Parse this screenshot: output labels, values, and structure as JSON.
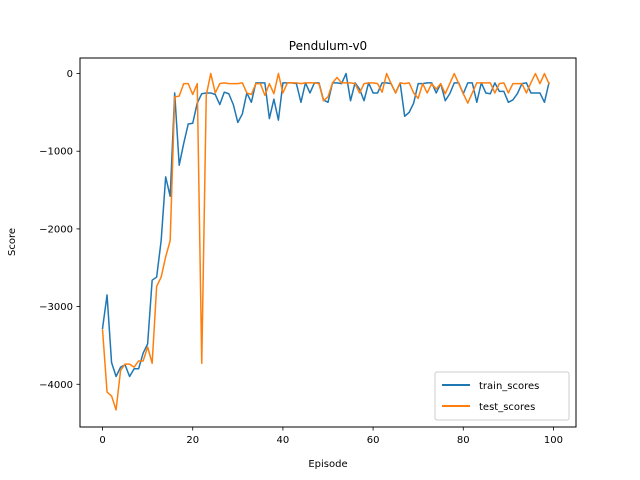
{
  "chart_data": {
    "type": "line",
    "title": "Pendulum-v0",
    "xlabel": "Episode",
    "ylabel": "Score",
    "xlim": [
      -5,
      105
    ],
    "ylim": [
      -4550,
      200
    ],
    "xticks": [
      0,
      20,
      40,
      60,
      80,
      100
    ],
    "yticks": [
      -4000,
      -3000,
      -2000,
      -1000,
      0
    ],
    "xtick_labels": [
      "0",
      "20",
      "40",
      "60",
      "80",
      "100"
    ],
    "ytick_labels": [
      "−4000",
      "−3000",
      "−2000",
      "−1000",
      "0"
    ],
    "legend_position": "lower-right",
    "series": [
      {
        "name": "train_scores",
        "color": "#1f77b4",
        "x": [
          0,
          1,
          2,
          3,
          4,
          5,
          6,
          7,
          8,
          9,
          10,
          11,
          12,
          13,
          14,
          15,
          16,
          17,
          18,
          19,
          20,
          21,
          22,
          23,
          24,
          25,
          26,
          27,
          28,
          29,
          30,
          31,
          32,
          33,
          34,
          35,
          36,
          37,
          38,
          39,
          40,
          41,
          42,
          43,
          44,
          45,
          46,
          47,
          48,
          49,
          50,
          51,
          52,
          53,
          54,
          55,
          56,
          57,
          58,
          59,
          60,
          61,
          62,
          63,
          64,
          65,
          66,
          67,
          68,
          69,
          70,
          71,
          72,
          73,
          74,
          75,
          76,
          77,
          78,
          79,
          80,
          81,
          82,
          83,
          84,
          85,
          86,
          87,
          88,
          89,
          90,
          91,
          92,
          93,
          94,
          95,
          96,
          97,
          98,
          99
        ],
        "values": [
          -3280,
          -2850,
          -3720,
          -3900,
          -3780,
          -3750,
          -3900,
          -3800,
          -3800,
          -3600,
          -3480,
          -2660,
          -2620,
          -2150,
          -1330,
          -1580,
          -250,
          -1180,
          -900,
          -650,
          -640,
          -380,
          -260,
          -250,
          -250,
          -270,
          -400,
          -240,
          -260,
          -400,
          -630,
          -520,
          -250,
          -370,
          -120,
          -120,
          -120,
          -580,
          -330,
          -600,
          -120,
          -120,
          -120,
          -130,
          -370,
          -120,
          -250,
          -120,
          -120,
          -340,
          -370,
          -120,
          -120,
          -130,
          0,
          -350,
          -120,
          -200,
          -350,
          -120,
          -250,
          -250,
          -120,
          -120,
          -130,
          -250,
          -120,
          -550,
          -500,
          -380,
          -130,
          -130,
          -120,
          -120,
          -250,
          -130,
          -350,
          -260,
          -120,
          -120,
          -260,
          -120,
          -120,
          -370,
          -120,
          -250,
          -260,
          -120,
          -230,
          -230,
          -370,
          -340,
          -260,
          -130,
          -120,
          -250,
          -250,
          -250,
          -370,
          -120
        ]
      },
      {
        "name": "test_scores",
        "color": "#ff7f0e",
        "x": [
          0,
          1,
          2,
          3,
          4,
          5,
          6,
          7,
          8,
          9,
          10,
          11,
          12,
          13,
          14,
          15,
          16,
          17,
          18,
          19,
          20,
          21,
          22,
          23,
          24,
          25,
          26,
          27,
          28,
          29,
          30,
          31,
          32,
          33,
          34,
          35,
          36,
          37,
          38,
          39,
          40,
          41,
          42,
          43,
          44,
          45,
          46,
          47,
          48,
          49,
          50,
          51,
          52,
          53,
          54,
          55,
          56,
          57,
          58,
          59,
          60,
          61,
          62,
          63,
          64,
          65,
          66,
          67,
          68,
          69,
          70,
          71,
          72,
          73,
          74,
          75,
          76,
          77,
          78,
          79,
          80,
          81,
          82,
          83,
          84,
          85,
          86,
          87,
          88,
          89,
          90,
          91,
          92,
          93,
          94,
          95,
          96,
          97,
          98,
          99
        ],
        "values": [
          -3300,
          -4100,
          -4150,
          -4330,
          -3820,
          -3740,
          -3740,
          -3780,
          -3700,
          -3700,
          -3520,
          -3730,
          -2740,
          -2620,
          -2360,
          -2150,
          -300,
          -290,
          -130,
          -130,
          -270,
          -130,
          -3730,
          -280,
          0,
          -250,
          -130,
          -120,
          -130,
          -130,
          -130,
          -120,
          -250,
          -270,
          -130,
          -130,
          -280,
          -130,
          -260,
          0,
          -250,
          -120,
          -120,
          -120,
          -130,
          -120,
          -120,
          -120,
          -130,
          -350,
          -300,
          -120,
          -50,
          -120,
          -120,
          -120,
          -130,
          -250,
          -130,
          -120,
          -120,
          -130,
          -240,
          0,
          -130,
          -250,
          -120,
          -130,
          -120,
          -250,
          -320,
          -130,
          -250,
          -130,
          -200,
          -130,
          -260,
          -130,
          0,
          -130,
          -260,
          -380,
          -250,
          -120,
          -120,
          -120,
          -120,
          -250,
          -130,
          -120,
          -250,
          -130,
          -130,
          -130,
          -250,
          -120,
          0,
          -130,
          0,
          -130
        ]
      }
    ]
  }
}
